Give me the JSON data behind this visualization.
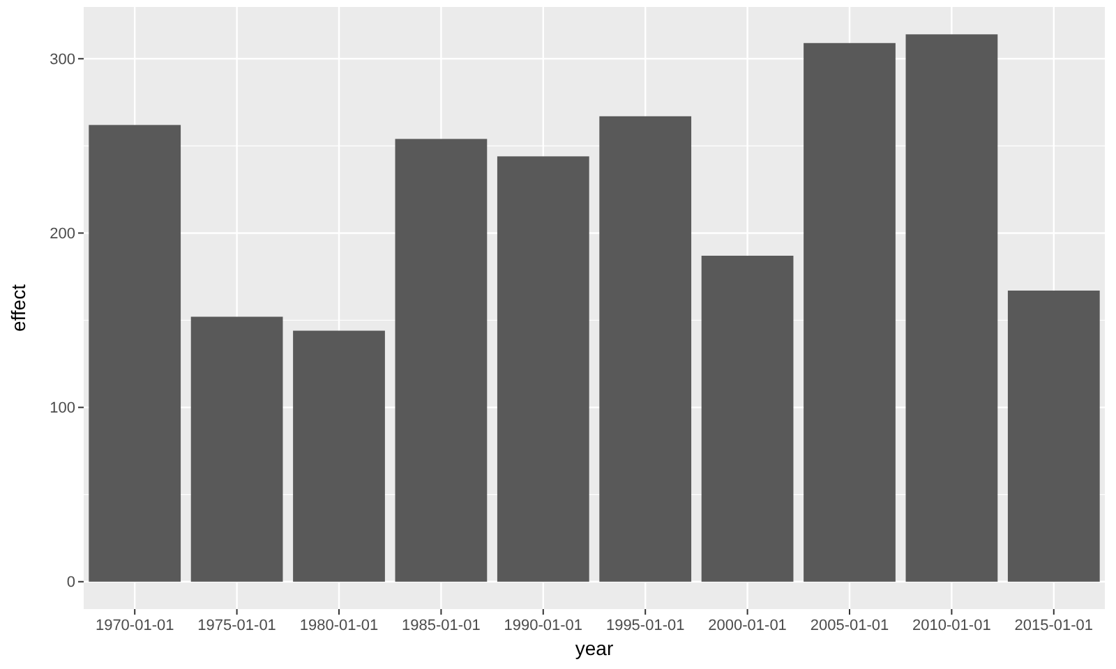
{
  "chart_data": {
    "type": "bar",
    "xlabel": "year",
    "ylabel": "effect",
    "categories": [
      "1970-01-01",
      "1975-01-01",
      "1980-01-01",
      "1985-01-01",
      "1990-01-01",
      "1995-01-01",
      "2000-01-01",
      "2005-01-01",
      "2010-01-01",
      "2015-01-01"
    ],
    "values": [
      262,
      152,
      144,
      254,
      244,
      267,
      187,
      309,
      314,
      167
    ],
    "color": "#595959",
    "ylim": [
      -15.7,
      329.7
    ],
    "yticks": [
      0,
      100,
      200,
      300
    ],
    "grid": true
  }
}
